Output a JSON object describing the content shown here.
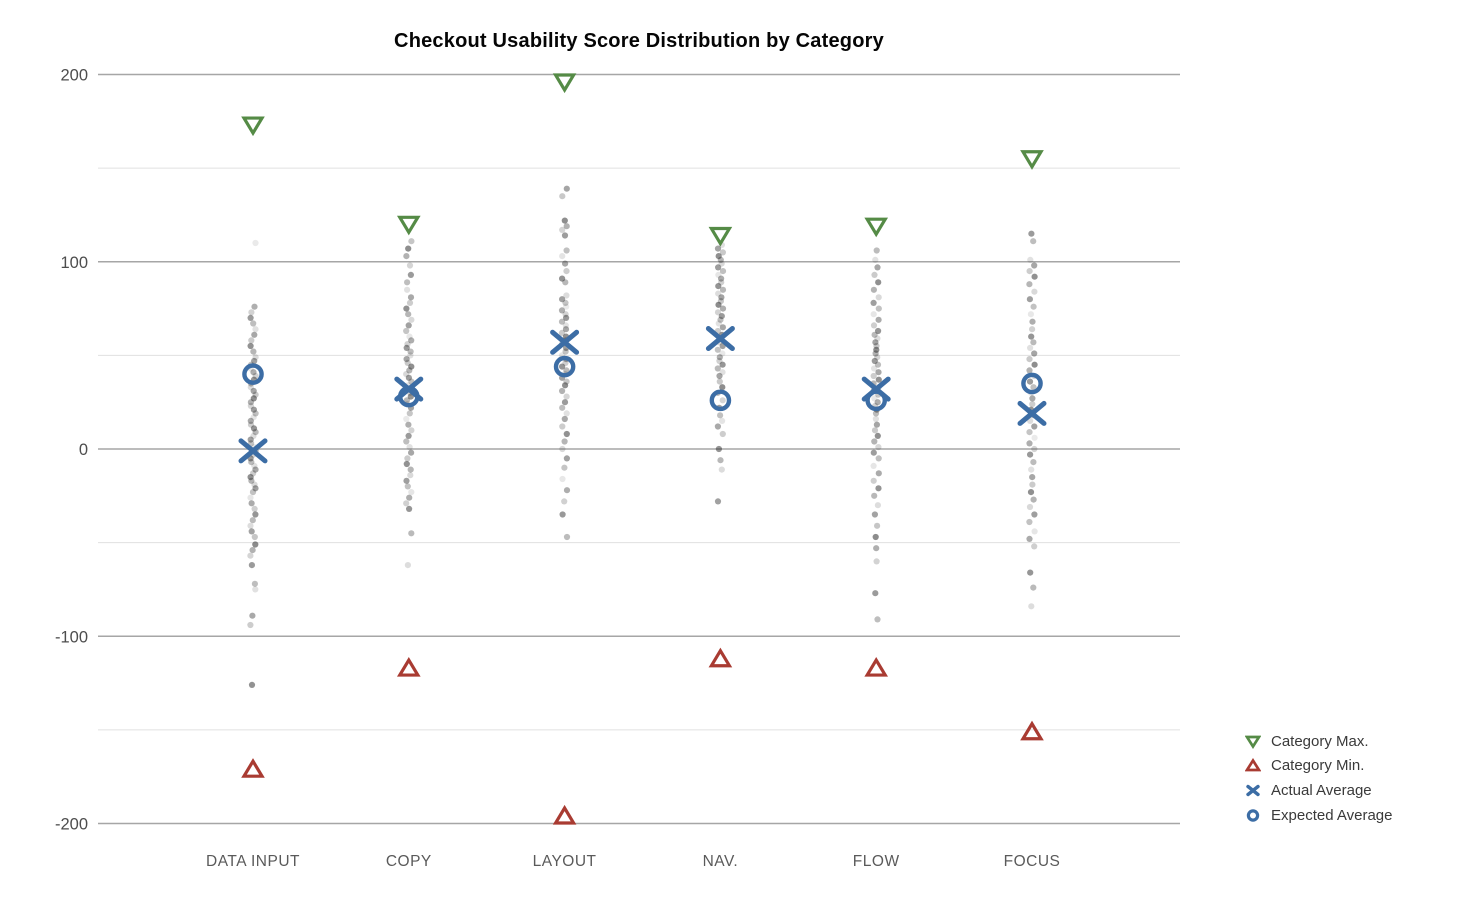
{
  "chart_data": {
    "type": "scatter",
    "title": "Checkout Usability Score Distribution by Category",
    "categories": [
      "DATA INPUT",
      "COPY",
      "LAYOUT",
      "NAV.",
      "FLOW",
      "FOCUS"
    ],
    "y_axis": {
      "range": [
        -215,
        212
      ],
      "ticks_major": [
        200,
        100,
        0,
        -100,
        -200
      ],
      "ticks_minor": [
        150,
        50,
        -50,
        -150
      ]
    },
    "grid": true,
    "legend_position": "bottom-right",
    "series": [
      {
        "name": "Category Max.",
        "marker": "triangle-down",
        "color": "#558b46",
        "values": [
          173,
          120,
          196,
          114,
          119,
          155
        ]
      },
      {
        "name": "Category Min.",
        "marker": "triangle-up",
        "color": "#a93b32",
        "values": [
          -171,
          -117,
          -196,
          -112,
          -117,
          -151
        ]
      },
      {
        "name": "Actual Average",
        "marker": "x",
        "color": "#3c6da5",
        "values": [
          -1,
          32,
          57,
          59,
          32,
          19
        ]
      },
      {
        "name": "Expected Average",
        "marker": "circle",
        "color": "#3c6da5",
        "values": [
          40,
          28,
          44,
          26,
          26,
          35
        ]
      }
    ],
    "points_color": "#2e2e2e",
    "grid_colors": {
      "major": "#a6a6a6",
      "minor": "#e0e0e0"
    },
    "points": {
      "DATA INPUT": [
        110,
        76,
        73,
        70,
        67,
        64,
        61,
        58,
        55,
        52,
        49,
        47,
        45,
        43,
        41,
        39,
        37,
        35,
        33,
        31,
        29,
        27,
        25,
        23,
        21,
        19,
        17,
        15,
        13,
        11,
        9,
        7,
        5,
        3,
        1,
        -1,
        -3,
        -5,
        -7,
        -9,
        -11,
        -13,
        -15,
        -17,
        -19,
        -21,
        -23,
        -26,
        -29,
        -32,
        -35,
        -38,
        -41,
        -44,
        -47,
        -51,
        -54,
        -57,
        -62,
        -72,
        -75,
        -89,
        -94,
        -126
      ],
      "COPY": [
        111,
        107,
        103,
        98,
        93,
        89,
        85,
        81,
        78,
        75,
        72,
        69,
        66,
        63,
        60,
        58,
        56,
        54,
        52,
        50,
        48,
        46,
        44,
        42,
        40,
        38,
        36,
        34,
        32,
        30,
        28,
        26,
        24,
        22,
        19,
        16,
        13,
        10,
        7,
        4,
        1,
        -2,
        -5,
        -8,
        -11,
        -14,
        -17,
        -20,
        -23,
        -26,
        -29,
        -32,
        -45,
        -62
      ],
      "LAYOUT": [
        139,
        135,
        122,
        119,
        117,
        114,
        106,
        103,
        99,
        95,
        91,
        89,
        82,
        80,
        78,
        76,
        74,
        72,
        70,
        68,
        66,
        64,
        62,
        60,
        58,
        56,
        54,
        52,
        50,
        48,
        46,
        44,
        42,
        40,
        38,
        36,
        34,
        31,
        28,
        25,
        22,
        19,
        16,
        12,
        8,
        4,
        0,
        -5,
        -10,
        -16,
        -22,
        -28,
        -35,
        -47
      ],
      "NAV.": [
        109,
        107,
        105,
        103,
        101,
        99,
        97,
        95,
        93,
        91,
        89,
        87,
        85,
        83,
        81,
        79,
        77,
        75,
        73,
        71,
        69,
        67,
        65,
        63,
        61,
        59,
        57,
        55,
        53,
        51,
        49,
        47,
        45,
        43,
        41,
        39,
        36,
        33,
        30,
        26,
        22,
        18,
        15,
        12,
        8,
        0,
        -6,
        -11,
        -28
      ],
      "FLOW": [
        106,
        101,
        97,
        93,
        89,
        85,
        81,
        78,
        75,
        72,
        69,
        66,
        63,
        61,
        59,
        57,
        55,
        53,
        51,
        49,
        47,
        45,
        43,
        41,
        39,
        37,
        35,
        33,
        31,
        29,
        27,
        25,
        23,
        21,
        19,
        16,
        13,
        10,
        7,
        4,
        1,
        -2,
        -5,
        -9,
        -13,
        -17,
        -21,
        -25,
        -30,
        -35,
        -41,
        -47,
        -53,
        -60,
        -77,
        -91
      ],
      "FOCUS": [
        115,
        111,
        101,
        98,
        95,
        92,
        88,
        84,
        80,
        76,
        72,
        68,
        64,
        60,
        57,
        54,
        51,
        48,
        45,
        42,
        39,
        36,
        33,
        30,
        27,
        24,
        21,
        18,
        15,
        12,
        9,
        6,
        3,
        0,
        -3,
        -7,
        -11,
        -15,
        -19,
        -23,
        -27,
        -31,
        -35,
        -39,
        -44,
        -48,
        -52,
        -66,
        -74,
        -84
      ]
    }
  }
}
